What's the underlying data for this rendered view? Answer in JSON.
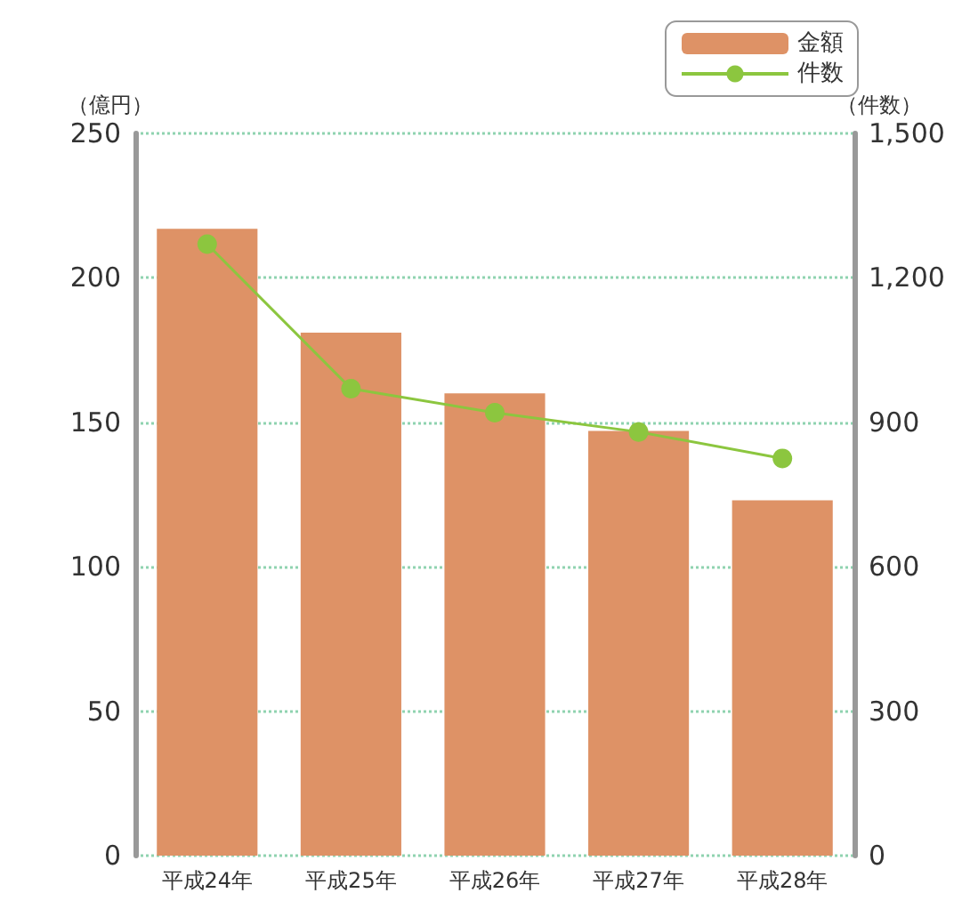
{
  "chart_data": {
    "type": "bar",
    "ylabel": "（億円）",
    "y2label": "（件数）",
    "categories": [
      "平成24年",
      "平成25年",
      "平成26年",
      "平成27年",
      "平成28年"
    ],
    "series": [
      {
        "name": "金額",
        "color": "#de9266",
        "values": [
          217,
          181,
          160,
          147,
          123
        ]
      },
      {
        "name": "件数",
        "type": "line",
        "axis": "y2",
        "color": "#8cc63f",
        "marker": "circle",
        "values": [
          1270,
          970,
          920,
          880,
          825
        ]
      }
    ],
    "ylim": [
      0,
      250
    ],
    "yticks": [
      0,
      50,
      100,
      150,
      200,
      250
    ],
    "y2lim": [
      0,
      1500
    ],
    "y2ticks": [
      0,
      {
        "value": 300,
        "label": "300"
      },
      {
        "value": 600,
        "label": "600"
      },
      {
        "value": 900,
        "label": "900"
      },
      {
        "value": 1200,
        "label": "1,200"
      },
      {
        "value": 1500,
        "label": "1,500"
      }
    ],
    "grid": "y",
    "legend": "top right"
  }
}
